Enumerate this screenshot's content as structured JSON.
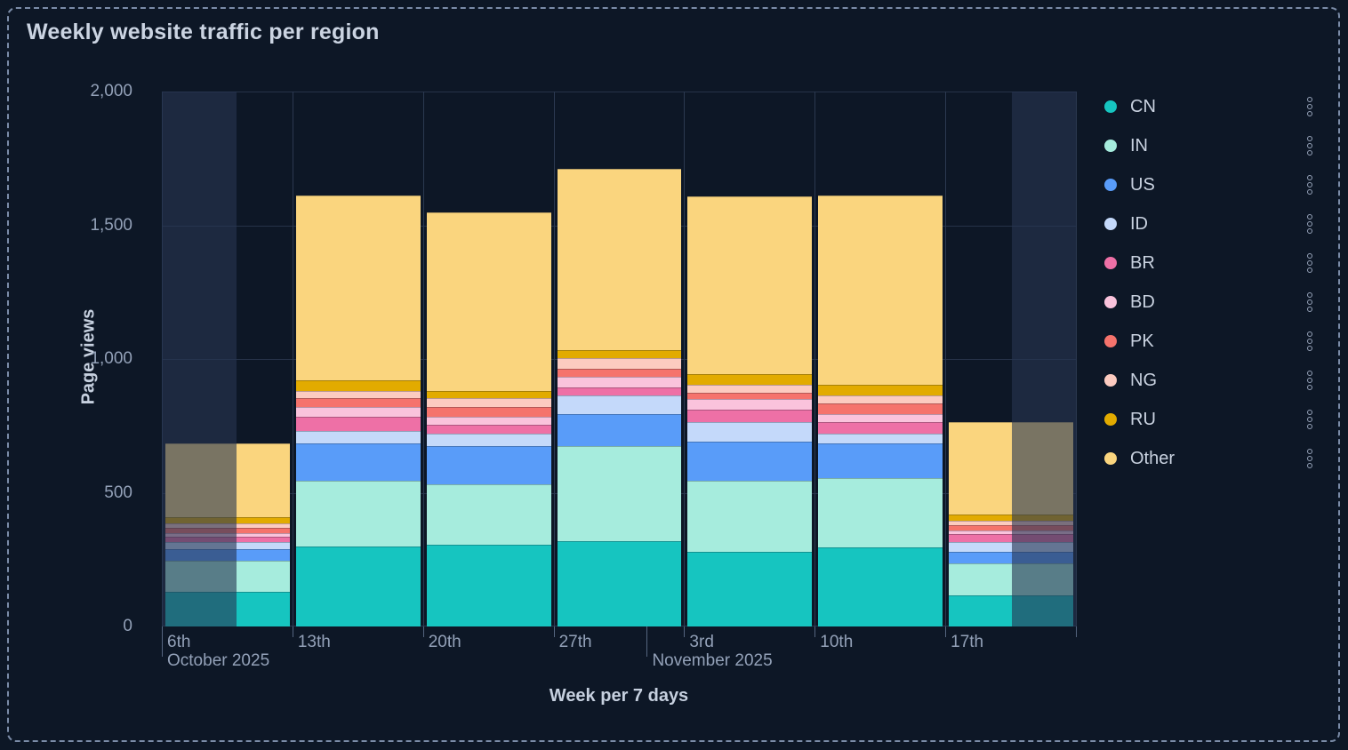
{
  "panel": {
    "title": "Weekly website traffic per region"
  },
  "chart_data": {
    "type": "bar",
    "stacked": true,
    "title": "Weekly website traffic per region",
    "xlabel": "Week per 7 days",
    "ylabel": "Page views",
    "ylim": [
      0,
      2000
    ],
    "grid": true,
    "legend_position": "right",
    "y_ticks": [
      {
        "value": 0,
        "label": "0"
      },
      {
        "value": 500,
        "label": "500"
      },
      {
        "value": 1000,
        "label": "1,000"
      },
      {
        "value": 1500,
        "label": "1,500"
      },
      {
        "value": 2000,
        "label": "2,000"
      }
    ],
    "categories": [
      "6th",
      "13th",
      "20th",
      "27th",
      "3rd",
      "10th",
      "17th"
    ],
    "month_labels": [
      {
        "label": "October 2025",
        "x_frac": 0.0
      },
      {
        "label": "November 2025",
        "x_frac": 0.5306
      }
    ],
    "series": [
      {
        "name": "CN",
        "color": "#16c5c0",
        "values": [
          130,
          300,
          305,
          320,
          280,
          295,
          115
        ]
      },
      {
        "name": "IN",
        "color": "#a6ecdd",
        "values": [
          115,
          245,
          225,
          355,
          265,
          260,
          120
        ]
      },
      {
        "name": "US",
        "color": "#599cf9",
        "values": [
          45,
          140,
          145,
          120,
          145,
          130,
          45
        ]
      },
      {
        "name": "ID",
        "color": "#c4d9fa",
        "values": [
          25,
          45,
          45,
          70,
          75,
          35,
          35
        ]
      },
      {
        "name": "BR",
        "color": "#ee70a6",
        "values": [
          20,
          55,
          35,
          30,
          45,
          45,
          30
        ]
      },
      {
        "name": "BD",
        "color": "#fac3dc",
        "values": [
          15,
          35,
          30,
          40,
          40,
          30,
          15
        ]
      },
      {
        "name": "PK",
        "color": "#f5736c",
        "values": [
          20,
          35,
          35,
          30,
          25,
          40,
          20
        ]
      },
      {
        "name": "NG",
        "color": "#fccbc0",
        "values": [
          15,
          25,
          35,
          40,
          30,
          30,
          15
        ]
      },
      {
        "name": "RU",
        "color": "#e2ab00",
        "values": [
          25,
          40,
          25,
          30,
          40,
          40,
          25
        ]
      },
      {
        "name": "Other",
        "color": "#fad57e",
        "values": [
          275,
          690,
          670,
          675,
          665,
          705,
          345
        ]
      }
    ],
    "totals": [
      685,
      1610,
      1550,
      1710,
      1610,
      1610,
      765
    ],
    "dimmed_partial_weeks": [
      {
        "category": "6th",
        "band": 0,
        "from_frac": 0.0,
        "to_frac": 0.571
      },
      {
        "category": "17th",
        "band": 6,
        "from_frac": 0.51,
        "to_frac": 1.0
      }
    ]
  },
  "legend": {
    "menu_icon": "vertical-ellipsis-icon"
  },
  "colors": {
    "background": "#0d1726",
    "panel_border": "#7b8ca8",
    "gridline": "#263349",
    "band_separator": "#2b3950",
    "tick_mark": "#55657f",
    "dim_overlay": "rgba(39,54,81,0.61)",
    "title_text": "#cbd4e2",
    "axis_title_text": "#c6d0df",
    "tick_label_text": "#93a1b8",
    "legend_text": "#c9d2e0"
  }
}
